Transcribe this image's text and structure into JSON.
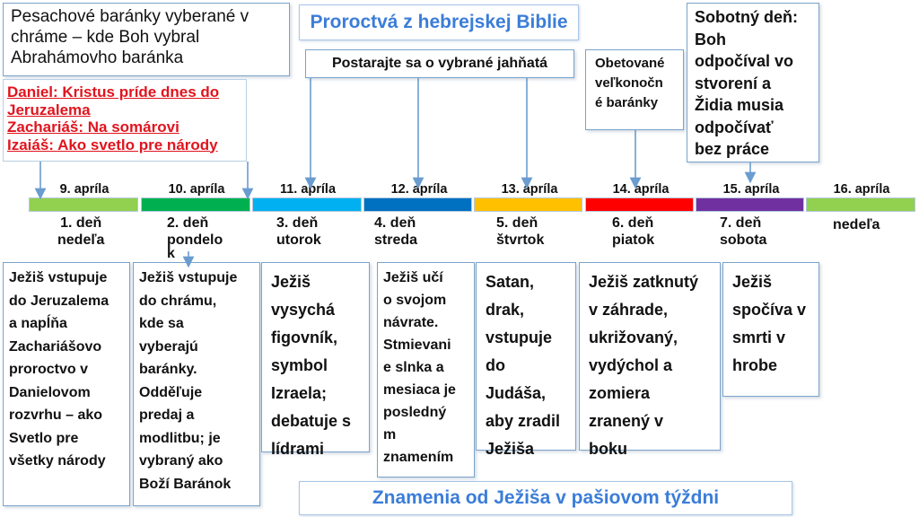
{
  "title_top": "Proroctvá z hebrejskej Biblie",
  "title_bottom": "Znamenia od Ježiša v pašiovom týždni",
  "top_left_box": [
    "Pesachové baránky vyberané v",
    "chráme – kde Boh vybral",
    "Abrahámovho baránka"
  ],
  "prophecies": [
    "Daniel: Kristus príde dnes do",
    "Jeruzalema",
    "Zachariáš: Na somárovi",
    "Izaiáš: Ako svetlo pre národy"
  ],
  "choose_lamb_box": "Postarajte sa o vybrané jahňatá",
  "sacrifice_box": [
    "Obetované",
    "veľkonočn",
    "é baránky"
  ],
  "sabbath_box": [
    "Sobotný deň:",
    "Boh",
    "odpočíval vo",
    "stvorení a",
    "Židia musia",
    "odpočívať",
    "bez práce"
  ],
  "colors": {
    "title_blue": "#3b7dd8",
    "prophecy_red": "#e0141e",
    "border": "#7ba3c9",
    "arrow": "#6a9ccf"
  },
  "timeline": [
    {
      "date": "9. apríla",
      "color": "#92d050",
      "day": [
        "1. deň",
        "nedeľa"
      ]
    },
    {
      "date": "10. apríla",
      "color": "#00b050",
      "day": [
        "2. deň",
        "pondelo",
        "k"
      ]
    },
    {
      "date": "11. apríla",
      "color": "#00b0f0",
      "day": [
        "3. deň",
        "utorok"
      ]
    },
    {
      "date": "12. apríla",
      "color": "#0070c0",
      "day": [
        "4. deň",
        "streda"
      ]
    },
    {
      "date": "13. apríla",
      "color": "#ffc000",
      "day": [
        "5. deň",
        "štvrtok"
      ]
    },
    {
      "date": "14. apríla",
      "color": "#ff0000",
      "day": [
        "6. deň",
        "piatok"
      ]
    },
    {
      "date": "15. apríla",
      "color": "#7030a0",
      "day": [
        "7. deň",
        "sobota"
      ]
    },
    {
      "date": "16. apríla",
      "color": "#92d050",
      "day": [
        "nedeľa"
      ]
    }
  ],
  "events": [
    [
      "Ježiš vstupuje",
      "do Jeruzalema",
      "a napĺňa",
      "Zachariášovo",
      "proroctvo v",
      "Danielovom",
      "rozvrhu – ako",
      "Svetlo pre",
      "všetky národy"
    ],
    [
      "Ježiš vstupuje",
      "do chrámu,",
      "kde sa",
      "vyberajú",
      "baránky.",
      "Odděľuje",
      "predaj a",
      "modlitbu; je",
      "vybraný ako",
      "Boží Baránok"
    ],
    [
      "Ježiš",
      "vysychá",
      "figovník,",
      "symbol",
      "Izraela;",
      "debatuje s",
      "lídrami"
    ],
    [
      "Ježiš učí",
      "o svojom",
      "návrate.",
      "Stmievani",
      "e slnka a",
      "mesiaca je",
      "posledný",
      "m",
      "znamením"
    ],
    [
      "Satan,",
      "drak,",
      "vstupuje",
      "do",
      "Judáša,",
      "aby zradil",
      "Ježiša"
    ],
    [
      "Ježiš zatknutý",
      "v záhrade,",
      "ukrižovaný,",
      "vydýchol a",
      "zomiera",
      "zranený v",
      "boku"
    ],
    [
      "Ježiš",
      "spočíva v",
      "smrti v",
      "hrobe"
    ]
  ]
}
